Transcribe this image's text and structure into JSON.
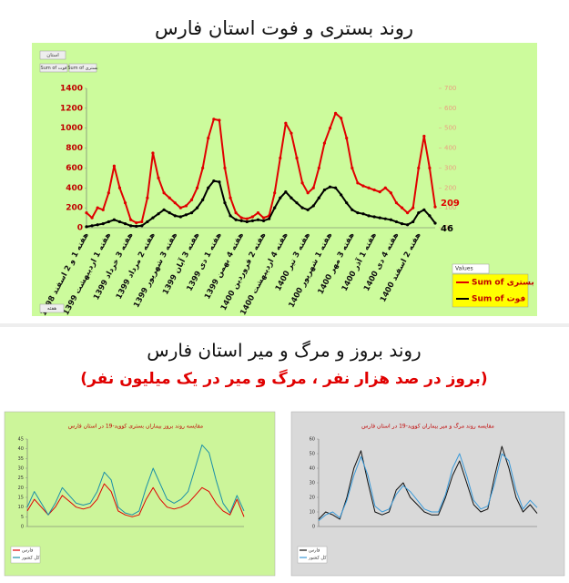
{
  "header": {
    "title": "روند بستری و فوت استان فارس"
  },
  "section2": {
    "title": "روند بروز و مرگ و میر استان فارس",
    "subtitle": "(بروز در صد هزار نفر ، مرگ و میر در یک میلیون نفر)"
  },
  "chart_data": [
    {
      "type": "line",
      "filter_button": "استان",
      "field_buttons": [
        "Sum of فوت",
        "Sum of بستری"
      ],
      "axis_button": "هفته",
      "legend_title": "Values",
      "categories": [
        "هفته 1 و 2 اسفند 1398",
        null,
        null,
        null,
        "هفته 1 اردیبهشت 1399",
        null,
        null,
        null,
        "هفته 3 خرداد 1399",
        null,
        null,
        null,
        "هفته 2 مرداد 1399",
        null,
        null,
        null,
        "هفته 3 شهریور 1399",
        null,
        null,
        null,
        "هفته 3 آبان 1399",
        null,
        null,
        null,
        "هفته 1 دی 1399",
        null,
        null,
        null,
        "هفته 4 بهمن 1399",
        null,
        null,
        null,
        "هفته 2 فروردین 1400",
        null,
        null,
        null,
        "هفته 4 اردیبهشت 1400",
        null,
        null,
        null,
        "هفته 3 تیر 1400",
        null,
        null,
        null,
        "هفته 1 شهریور 1400",
        null,
        null,
        null,
        "هفته 3 مهر 1400",
        null,
        null,
        null,
        "هفته 1 آذر 1400",
        null,
        null,
        null,
        "هفته 4 دی 1400",
        null,
        null,
        null,
        "هفته 2 اسفند 1400",
        null,
        null,
        null
      ],
      "series": [
        {
          "name": "Sum of بستری",
          "color": "#e00000",
          "values": [
            150,
            100,
            200,
            180,
            350,
            620,
            400,
            250,
            80,
            50,
            60,
            300,
            750,
            500,
            350,
            300,
            250,
            200,
            220,
            280,
            400,
            600,
            900,
            1090,
            1080,
            600,
            300,
            150,
            100,
            90,
            110,
            150,
            100,
            120,
            350,
            700,
            1050,
            950,
            700,
            450,
            350,
            400,
            600,
            850,
            1000,
            1150,
            1100,
            900,
            600,
            450,
            420,
            400,
            380,
            360,
            400,
            350,
            250,
            200,
            150,
            200,
            600,
            920,
            600,
            209
          ]
        },
        {
          "name": "Sum of فوت",
          "color": "#000000",
          "values": [
            10,
            20,
            30,
            40,
            60,
            80,
            60,
            40,
            20,
            15,
            20,
            60,
            100,
            140,
            180,
            150,
            120,
            110,
            130,
            150,
            200,
            280,
            400,
            470,
            460,
            250,
            120,
            80,
            70,
            60,
            70,
            80,
            70,
            90,
            200,
            300,
            360,
            300,
            250,
            200,
            180,
            220,
            300,
            380,
            410,
            400,
            330,
            250,
            180,
            150,
            140,
            120,
            110,
            100,
            90,
            80,
            60,
            40,
            30,
            60,
            150,
            180,
            120,
            46
          ]
        }
      ],
      "ylim": [
        0,
        1400
      ],
      "yticks": [
        0,
        200,
        400,
        600,
        800,
        1000,
        1200,
        1400
      ],
      "y2lim": [
        0,
        700
      ],
      "y2ticks": [
        0,
        100,
        200,
        300,
        400,
        500,
        600,
        700
      ],
      "grid": false,
      "markers": true,
      "end_labels": true,
      "legend": "right"
    },
    {
      "type": "line",
      "title": "مقایسه روند بروز بیماران بستری کووید-19 در استان فارس",
      "categories": [
        null,
        null,
        null,
        null,
        null,
        null,
        null,
        null,
        null,
        null,
        null,
        null,
        null,
        null,
        null,
        null,
        null,
        null,
        null,
        null,
        null,
        null,
        null,
        null,
        null,
        null,
        null,
        null,
        null,
        null,
        null,
        null
      ],
      "series": [
        {
          "name": "فارس",
          "color": "#e00000",
          "values": [
            8,
            14,
            10,
            6,
            10,
            16,
            13,
            10,
            9,
            10,
            14,
            22,
            18,
            8,
            6,
            5,
            6,
            14,
            20,
            14,
            10,
            9,
            10,
            12,
            16,
            20,
            18,
            12,
            8,
            6,
            14,
            5
          ]
        },
        {
          "name": "کل کشور",
          "color": "#1a8fa8",
          "values": [
            10,
            18,
            12,
            6,
            12,
            20,
            16,
            12,
            11,
            12,
            18,
            28,
            24,
            10,
            7,
            6,
            8,
            20,
            30,
            22,
            14,
            12,
            14,
            18,
            30,
            42,
            38,
            24,
            12,
            7,
            16,
            8
          ]
        }
      ],
      "ylim": [
        0,
        45
      ],
      "yticks": [
        0,
        5,
        10,
        15,
        20,
        25,
        30,
        35,
        40,
        45
      ],
      "grid": false,
      "markers": false,
      "end_labels": false,
      "legend": "bottom-left"
    },
    {
      "type": "line",
      "title": "مقایسه روند مرگ و میر بیماران کووید-19 در استان فارس",
      "categories": [
        null,
        null,
        null,
        null,
        null,
        null,
        null,
        null,
        null,
        null,
        null,
        null,
        null,
        null,
        null,
        null,
        null,
        null,
        null,
        null,
        null,
        null,
        null,
        null,
        null,
        null,
        null,
        null,
        null,
        null,
        null,
        null
      ],
      "series": [
        {
          "name": "فارس",
          "color": "#111111",
          "values": [
            5,
            10,
            8,
            5,
            20,
            40,
            52,
            30,
            10,
            8,
            10,
            25,
            30,
            20,
            15,
            10,
            8,
            8,
            20,
            35,
            45,
            30,
            15,
            10,
            12,
            35,
            55,
            40,
            20,
            10,
            15,
            9
          ]
        },
        {
          "name": "کل کشور",
          "color": "#3a9ad9",
          "values": [
            4,
            8,
            10,
            6,
            18,
            35,
            48,
            35,
            14,
            10,
            12,
            22,
            28,
            24,
            18,
            12,
            10,
            10,
            22,
            40,
            50,
            35,
            18,
            12,
            14,
            30,
            50,
            45,
            25,
            12,
            18,
            13
          ]
        }
      ],
      "ylim": [
        0,
        60
      ],
      "yticks": [
        0,
        10,
        20,
        30,
        40,
        50,
        60
      ],
      "grid": false,
      "markers": false,
      "end_labels": false,
      "legend": "bottom-left"
    }
  ]
}
